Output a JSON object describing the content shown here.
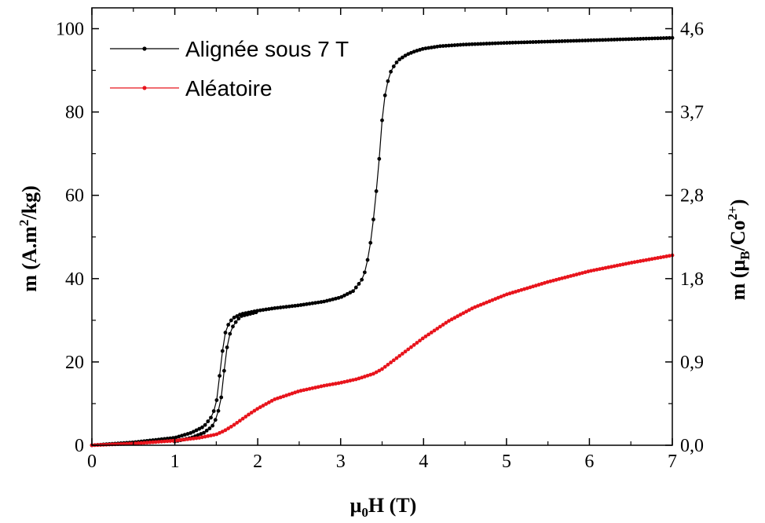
{
  "chart_data": {
    "type": "line",
    "xlabel": {
      "main": "μ",
      "sub": "0",
      "tail": "H (T)"
    },
    "ylabel_left": {
      "pre": "m (A.m",
      "sup": "2",
      "post": "/kg)"
    },
    "ylabel_right": {
      "pre": "m (μ",
      "sub": "B",
      "mid": "/Co",
      "sup": "2+",
      "post": ")"
    },
    "xlim": [
      0,
      7
    ],
    "ylim": [
      0,
      105
    ],
    "x_ticks": [
      0,
      1,
      2,
      3,
      4,
      5,
      6,
      7
    ],
    "x_tick_labels": [
      "0",
      "1",
      "2",
      "3",
      "4",
      "5",
      "6",
      "7"
    ],
    "y_ticks": [
      0,
      20,
      40,
      60,
      80,
      100
    ],
    "y_tick_labels": [
      "0",
      "20",
      "40",
      "60",
      "80",
      "100"
    ],
    "y2_tick_labels": [
      "0,0",
      "0,9",
      "1,8",
      "2,8",
      "3,7",
      "4,6"
    ],
    "legend_position": "top-left",
    "series": [
      {
        "name": "Alignée sous 7 T",
        "color": "#000000",
        "branches": [
          {
            "x": [
              0,
              0.5,
              1.0,
              1.2,
              1.35,
              1.45,
              1.5,
              1.53,
              1.56,
              1.58,
              1.6,
              1.65,
              1.7,
              1.8,
              2.0,
              2.2,
              2.5,
              2.8,
              3.0,
              3.15,
              3.25,
              3.3,
              3.35,
              3.4,
              3.43,
              3.45,
              3.47,
              3.5,
              3.52,
              3.55,
              3.6,
              3.65,
              3.7,
              3.8,
              3.9,
              4.0,
              4.2,
              4.5,
              5.0,
              6.0,
              7.0
            ],
            "y": [
              0,
              0.7,
              1.8,
              3.0,
              4.5,
              7.0,
              10.0,
              15.0,
              20.0,
              23.5,
              26.5,
              29.2,
              30.5,
              31.5,
              32.3,
              32.9,
              33.6,
              34.5,
              35.5,
              37.0,
              39.5,
              42.0,
              47.0,
              55.0,
              61.0,
              65.0,
              70.0,
              78.0,
              82.0,
              86.0,
              89.5,
              91.3,
              92.5,
              93.8,
              94.6,
              95.2,
              95.8,
              96.2,
              96.6,
              97.2,
              97.8
            ]
          },
          {
            "x": [
              1.0,
              1.2,
              1.35,
              1.45,
              1.5,
              1.55,
              1.58,
              1.6,
              1.63,
              1.66,
              1.7,
              1.75,
              1.8,
              2.0
            ],
            "y": [
              0.9,
              1.8,
              3.0,
              4.5,
              6.5,
              10.0,
              14.5,
              19.0,
              23.5,
              26.5,
              28.5,
              30.0,
              31.0,
              32.0
            ]
          }
        ]
      },
      {
        "name": "Aléatoire",
        "color": "#e8141c",
        "branches": [
          {
            "x": [
              0,
              0.5,
              1.0,
              1.3,
              1.5,
              1.6,
              1.7,
              1.8,
              1.9,
              2.0,
              2.2,
              2.5,
              2.8,
              3.0,
              3.2,
              3.4,
              3.5,
              3.6,
              3.8,
              4.0,
              4.3,
              4.6,
              5.0,
              5.5,
              6.0,
              6.5,
              7.0
            ],
            "y": [
              0,
              0.4,
              1.1,
              1.8,
              2.6,
              3.5,
              4.7,
              6.1,
              7.5,
              8.8,
              11.0,
              13.0,
              14.3,
              15.0,
              15.9,
              17.2,
              18.3,
              19.8,
              22.8,
              25.8,
              29.8,
              33.0,
              36.2,
              39.2,
              41.8,
              43.8,
              45.6
            ]
          }
        ]
      }
    ]
  }
}
